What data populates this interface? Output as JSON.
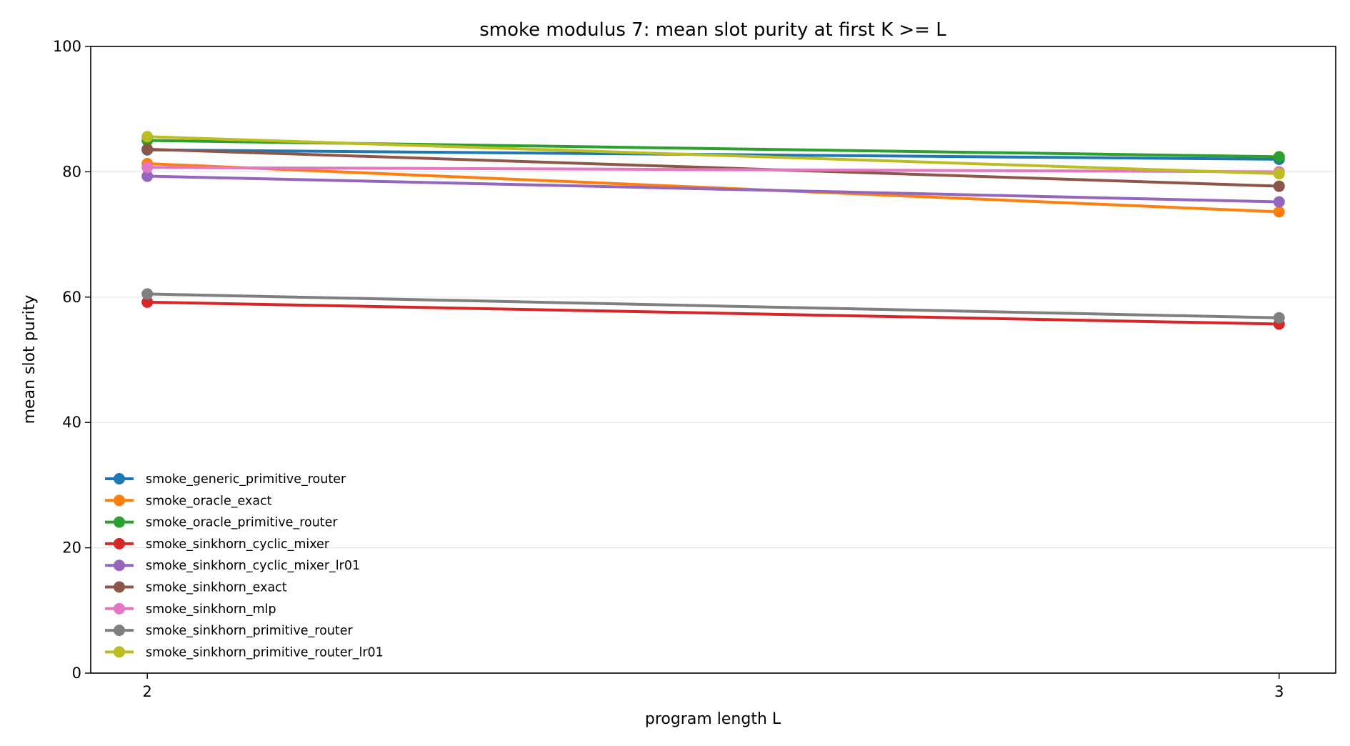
{
  "chart_data": {
    "type": "line",
    "title": "smoke modulus 7: mean slot purity at first K >= L",
    "xlabel": "program length L",
    "ylabel": "mean slot purity",
    "x": [
      2,
      3
    ],
    "xticks": [
      "2",
      "3"
    ],
    "xlim": [
      1.95,
      3.05
    ],
    "ylim": [
      0,
      100
    ],
    "yticks": [
      "0",
      "20",
      "40",
      "60",
      "80",
      "100"
    ],
    "grid": "horizontal",
    "legend_position": "lower-left",
    "series": [
      {
        "name": "smoke_generic_primitive_router",
        "color": "#1f77b4",
        "values": [
          83.5,
          82.0
        ]
      },
      {
        "name": "smoke_oracle_exact",
        "color": "#ff7f0e",
        "values": [
          81.3,
          73.6
        ]
      },
      {
        "name": "smoke_oracle_primitive_router",
        "color": "#2ca02c",
        "values": [
          85.0,
          82.4
        ]
      },
      {
        "name": "smoke_sinkhorn_cyclic_mixer",
        "color": "#d62728",
        "values": [
          59.2,
          55.7
        ]
      },
      {
        "name": "smoke_sinkhorn_cyclic_mixer_lr01",
        "color": "#9467bd",
        "values": [
          79.3,
          75.2
        ]
      },
      {
        "name": "smoke_sinkhorn_exact",
        "color": "#8c564b",
        "values": [
          83.6,
          77.7
        ]
      },
      {
        "name": "smoke_sinkhorn_mlp",
        "color": "#e377c2",
        "values": [
          80.7,
          80.0
        ]
      },
      {
        "name": "smoke_sinkhorn_primitive_router",
        "color": "#7f7f7f",
        "values": [
          60.5,
          56.7
        ]
      },
      {
        "name": "smoke_sinkhorn_primitive_router_lr01",
        "color": "#bcbd22",
        "values": [
          85.6,
          79.7
        ]
      }
    ]
  }
}
